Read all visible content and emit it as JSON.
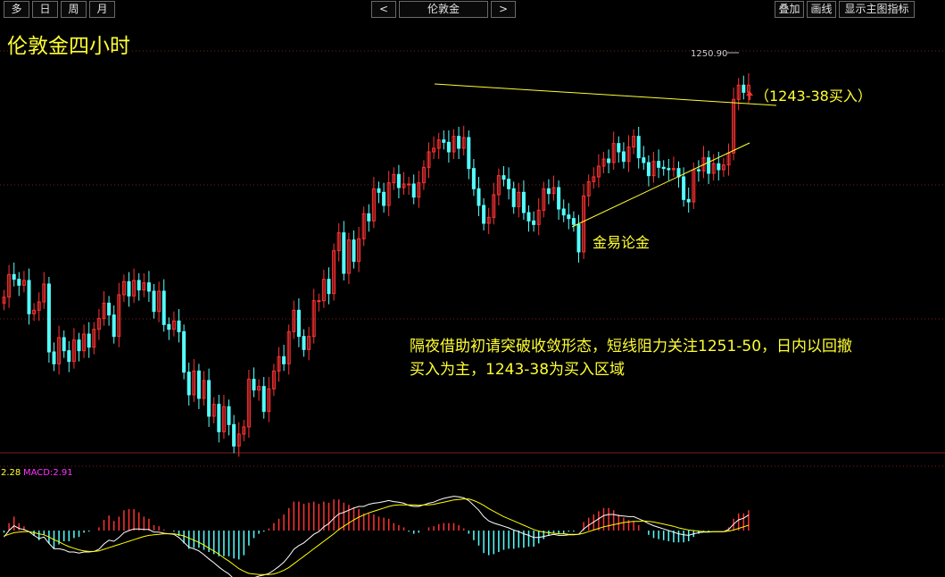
{
  "toolbar": {
    "left_buttons": [
      "多",
      "日",
      "周",
      "月"
    ],
    "prev_label": "<",
    "symbol": "伦敦金",
    "next_label": ">",
    "right_buttons": [
      "叠加",
      "画线",
      "显示主图指标"
    ]
  },
  "chart_title": "伦敦金四小时",
  "annotations": {
    "buy_zone_label": "（1243-38买入）",
    "watermark": "金易论金",
    "commentary_line1": "隔夜借助初请突破收敛形态，短线阻力关注1251-50，日内以回撤",
    "commentary_line2": "买入为主，1243-38为买入区域"
  },
  "macd_header": {
    "dif_text": "2.28",
    "macd_text": "MACD:2.91"
  },
  "colors": {
    "background": "#000000",
    "up_candle": "#ff3232",
    "down_candle": "#54ffff",
    "trendline": "#ffff33",
    "annotation_text": "#ffff33",
    "grid": "#7a1f1f",
    "dif_line": "#ffffff",
    "dea_line": "#ffff00",
    "macd_label": "#ff33ff"
  },
  "chart_data": {
    "type": "candlestick",
    "title": "伦敦金四小时",
    "high_label": "1250.90",
    "ylim": [
      1220,
      1253
    ],
    "close": [
      1231.8,
      1233.7,
      1233.3,
      1232.8,
      1233.2,
      1230.4,
      1230.7,
      1231.4,
      1232.9,
      1227.2,
      1226.2,
      1228.4,
      1227.3,
      1226.4,
      1228.2,
      1227.3,
      1228.7,
      1227.6,
      1229.1,
      1230.0,
      1231.3,
      1230.3,
      1228.5,
      1232.0,
      1233.1,
      1231.9,
      1233.2,
      1232.4,
      1233.0,
      1232.3,
      1230.6,
      1232.3,
      1229.5,
      1229.1,
      1229.8,
      1228.9,
      1225.5,
      1223.6,
      1225.6,
      1223.3,
      1224.8,
      1221.8,
      1222.8,
      1220.5,
      1222.6,
      1221.1,
      1219.3,
      1220.3,
      1220.9,
      1224.9,
      1224.0,
      1224.3,
      1222.2,
      1224.1,
      1225.6,
      1226.8,
      1226.2,
      1228.9,
      1230.7,
      1228.5,
      1227.4,
      1228.5,
      1231.5,
      1231.5,
      1233.3,
      1232.1,
      1235.7,
      1237.2,
      1233.8,
      1236.6,
      1234.8,
      1236.7,
      1238.8,
      1238.2,
      1240.9,
      1240.6,
      1239.5,
      1241.4,
      1242.1,
      1241.0,
      1241.3,
      1241.3,
      1240.2,
      1241.4,
      1242.7,
      1244.0,
      1244.3,
      1245.0,
      1244.8,
      1244.0,
      1245.3,
      1244.3,
      1245.2,
      1242.6,
      1240.9,
      1239.5,
      1238.0,
      1238.5,
      1240.4,
      1242.0,
      1241.7,
      1240.9,
      1239.4,
      1240.6,
      1238.9,
      1238.2,
      1237.9,
      1239.1,
      1240.9,
      1240.5,
      1241.0,
      1239.2,
      1238.7,
      1238.4,
      1237.9,
      1235.6,
      1240.3,
      1241.5,
      1241.9,
      1242.8,
      1243.4,
      1243.1,
      1244.7,
      1244.0,
      1243.2,
      1244.4,
      1245.3,
      1243.5,
      1243.1,
      1242.0,
      1243.2,
      1242.7,
      1242.6,
      1242.5,
      1242.6,
      1241.9,
      1240.0,
      1239.8,
      1242.5,
      1242.4,
      1243.5,
      1242.2,
      1243.0,
      1242.5,
      1242.9,
      1243.9,
      1248.4,
      1249.6,
      1249.0,
      1249.6
    ]
  },
  "macd_data": {
    "dif": [
      -1.2,
      0.0,
      0.9,
      0.4,
      0.2,
      -0.2,
      -0.9,
      -1.5,
      -1.2,
      -2.4,
      -3.4,
      -3.4,
      -3.6,
      -4.0,
      -4.0,
      -4.2,
      -4.0,
      -4.0,
      -3.9,
      -3.5,
      -2.5,
      -1.8,
      -2.0,
      -1.3,
      -0.4,
      0.0,
      0.3,
      0.3,
      0.2,
      0.2,
      -0.3,
      -0.3,
      -0.5,
      -0.6,
      -0.7,
      -1.3,
      -2.2,
      -3.1,
      -3.4,
      -3.8,
      -4.5,
      -5.3,
      -6.0,
      -6.8,
      -7.5,
      -8.1,
      -9.0,
      -9.8,
      -9.9,
      -9.4,
      -8.8,
      -8.5,
      -8.3,
      -8.0,
      -7.4,
      -6.7,
      -5.9,
      -4.8,
      -3.5,
      -2.8,
      -2.3,
      -1.5,
      -0.7,
      -0.2,
      0.7,
      1.3,
      2.3,
      3.1,
      3.4,
      3.8,
      4.2,
      4.5,
      4.5,
      4.9,
      5.1,
      5.2,
      5.4,
      5.6,
      5.4,
      5.3,
      5.1,
      4.7,
      4.5,
      4.5,
      4.8,
      5.1,
      5.3,
      5.7,
      6.0,
      6.2,
      6.4,
      6.3,
      6.1,
      5.6,
      4.7,
      3.8,
      2.6,
      1.8,
      1.4,
      1.1,
      0.8,
      0.5,
      0.1,
      -0.2,
      -0.6,
      -0.9,
      -1.3,
      -1.3,
      -1.1,
      -0.9,
      -0.7,
      -0.9,
      -0.9,
      -0.8,
      -0.8,
      -0.7,
      0.3,
      1.0,
      1.6,
      2.2,
      2.8,
      3.0,
      3.0,
      2.8,
      2.7,
      2.6,
      2.6,
      2.2,
      1.8,
      1.3,
      0.9,
      0.6,
      0.3,
      0.0,
      -0.3,
      -0.6,
      -0.8,
      -0.9,
      -0.6,
      -0.4,
      -0.3,
      -0.3,
      -0.2,
      -0.2,
      -0.2,
      0.2,
      1.2,
      2.0,
      2.3,
      2.9
    ],
    "dea": [
      -1.0,
      -0.7,
      -0.4,
      -0.3,
      -0.2,
      -0.2,
      -0.4,
      -0.6,
      -0.8,
      -1.2,
      -1.7,
      -2.1,
      -2.6,
      -3.0,
      -3.3,
      -3.6,
      -3.8,
      -3.9,
      -3.9,
      -3.8,
      -3.5,
      -3.2,
      -2.9,
      -2.6,
      -2.3,
      -2.0,
      -1.7,
      -1.4,
      -1.1,
      -0.9,
      -0.8,
      -0.7,
      -0.6,
      -0.6,
      -0.6,
      -0.8,
      -1.0,
      -1.4,
      -1.8,
      -2.2,
      -2.7,
      -3.3,
      -3.8,
      -4.4,
      -5.1,
      -5.7,
      -6.4,
      -7.1,
      -7.6,
      -8.0,
      -8.1,
      -8.2,
      -8.2,
      -8.2,
      -8.1,
      -7.8,
      -7.4,
      -6.9,
      -6.2,
      -5.5,
      -4.8,
      -4.1,
      -3.4,
      -2.7,
      -2.0,
      -1.3,
      -0.6,
      0.2,
      0.8,
      1.4,
      2.0,
      2.5,
      2.9,
      3.3,
      3.6,
      3.9,
      4.2,
      4.5,
      4.7,
      4.8,
      4.8,
      4.8,
      4.8,
      4.7,
      4.8,
      4.8,
      4.9,
      5.1,
      5.3,
      5.5,
      5.7,
      5.8,
      5.9,
      5.9,
      5.6,
      5.2,
      4.7,
      4.1,
      3.6,
      3.1,
      2.6,
      2.2,
      1.8,
      1.4,
      1.0,
      0.6,
      0.2,
      -0.1,
      -0.3,
      -0.4,
      -0.5,
      -0.6,
      -0.6,
      -0.7,
      -0.7,
      -0.7,
      -0.5,
      -0.2,
      0.1,
      0.4,
      0.7,
      0.9,
      1.1,
      1.3,
      1.5,
      1.6,
      1.7,
      1.7,
      1.8,
      1.7,
      1.6,
      1.4,
      1.2,
      1.0,
      0.8,
      0.5,
      0.3,
      0.1,
      0.0,
      -0.1,
      -0.2,
      -0.2,
      -0.2,
      -0.2,
      -0.2,
      -0.1,
      0.1,
      0.4,
      0.7,
      1.0
    ]
  }
}
